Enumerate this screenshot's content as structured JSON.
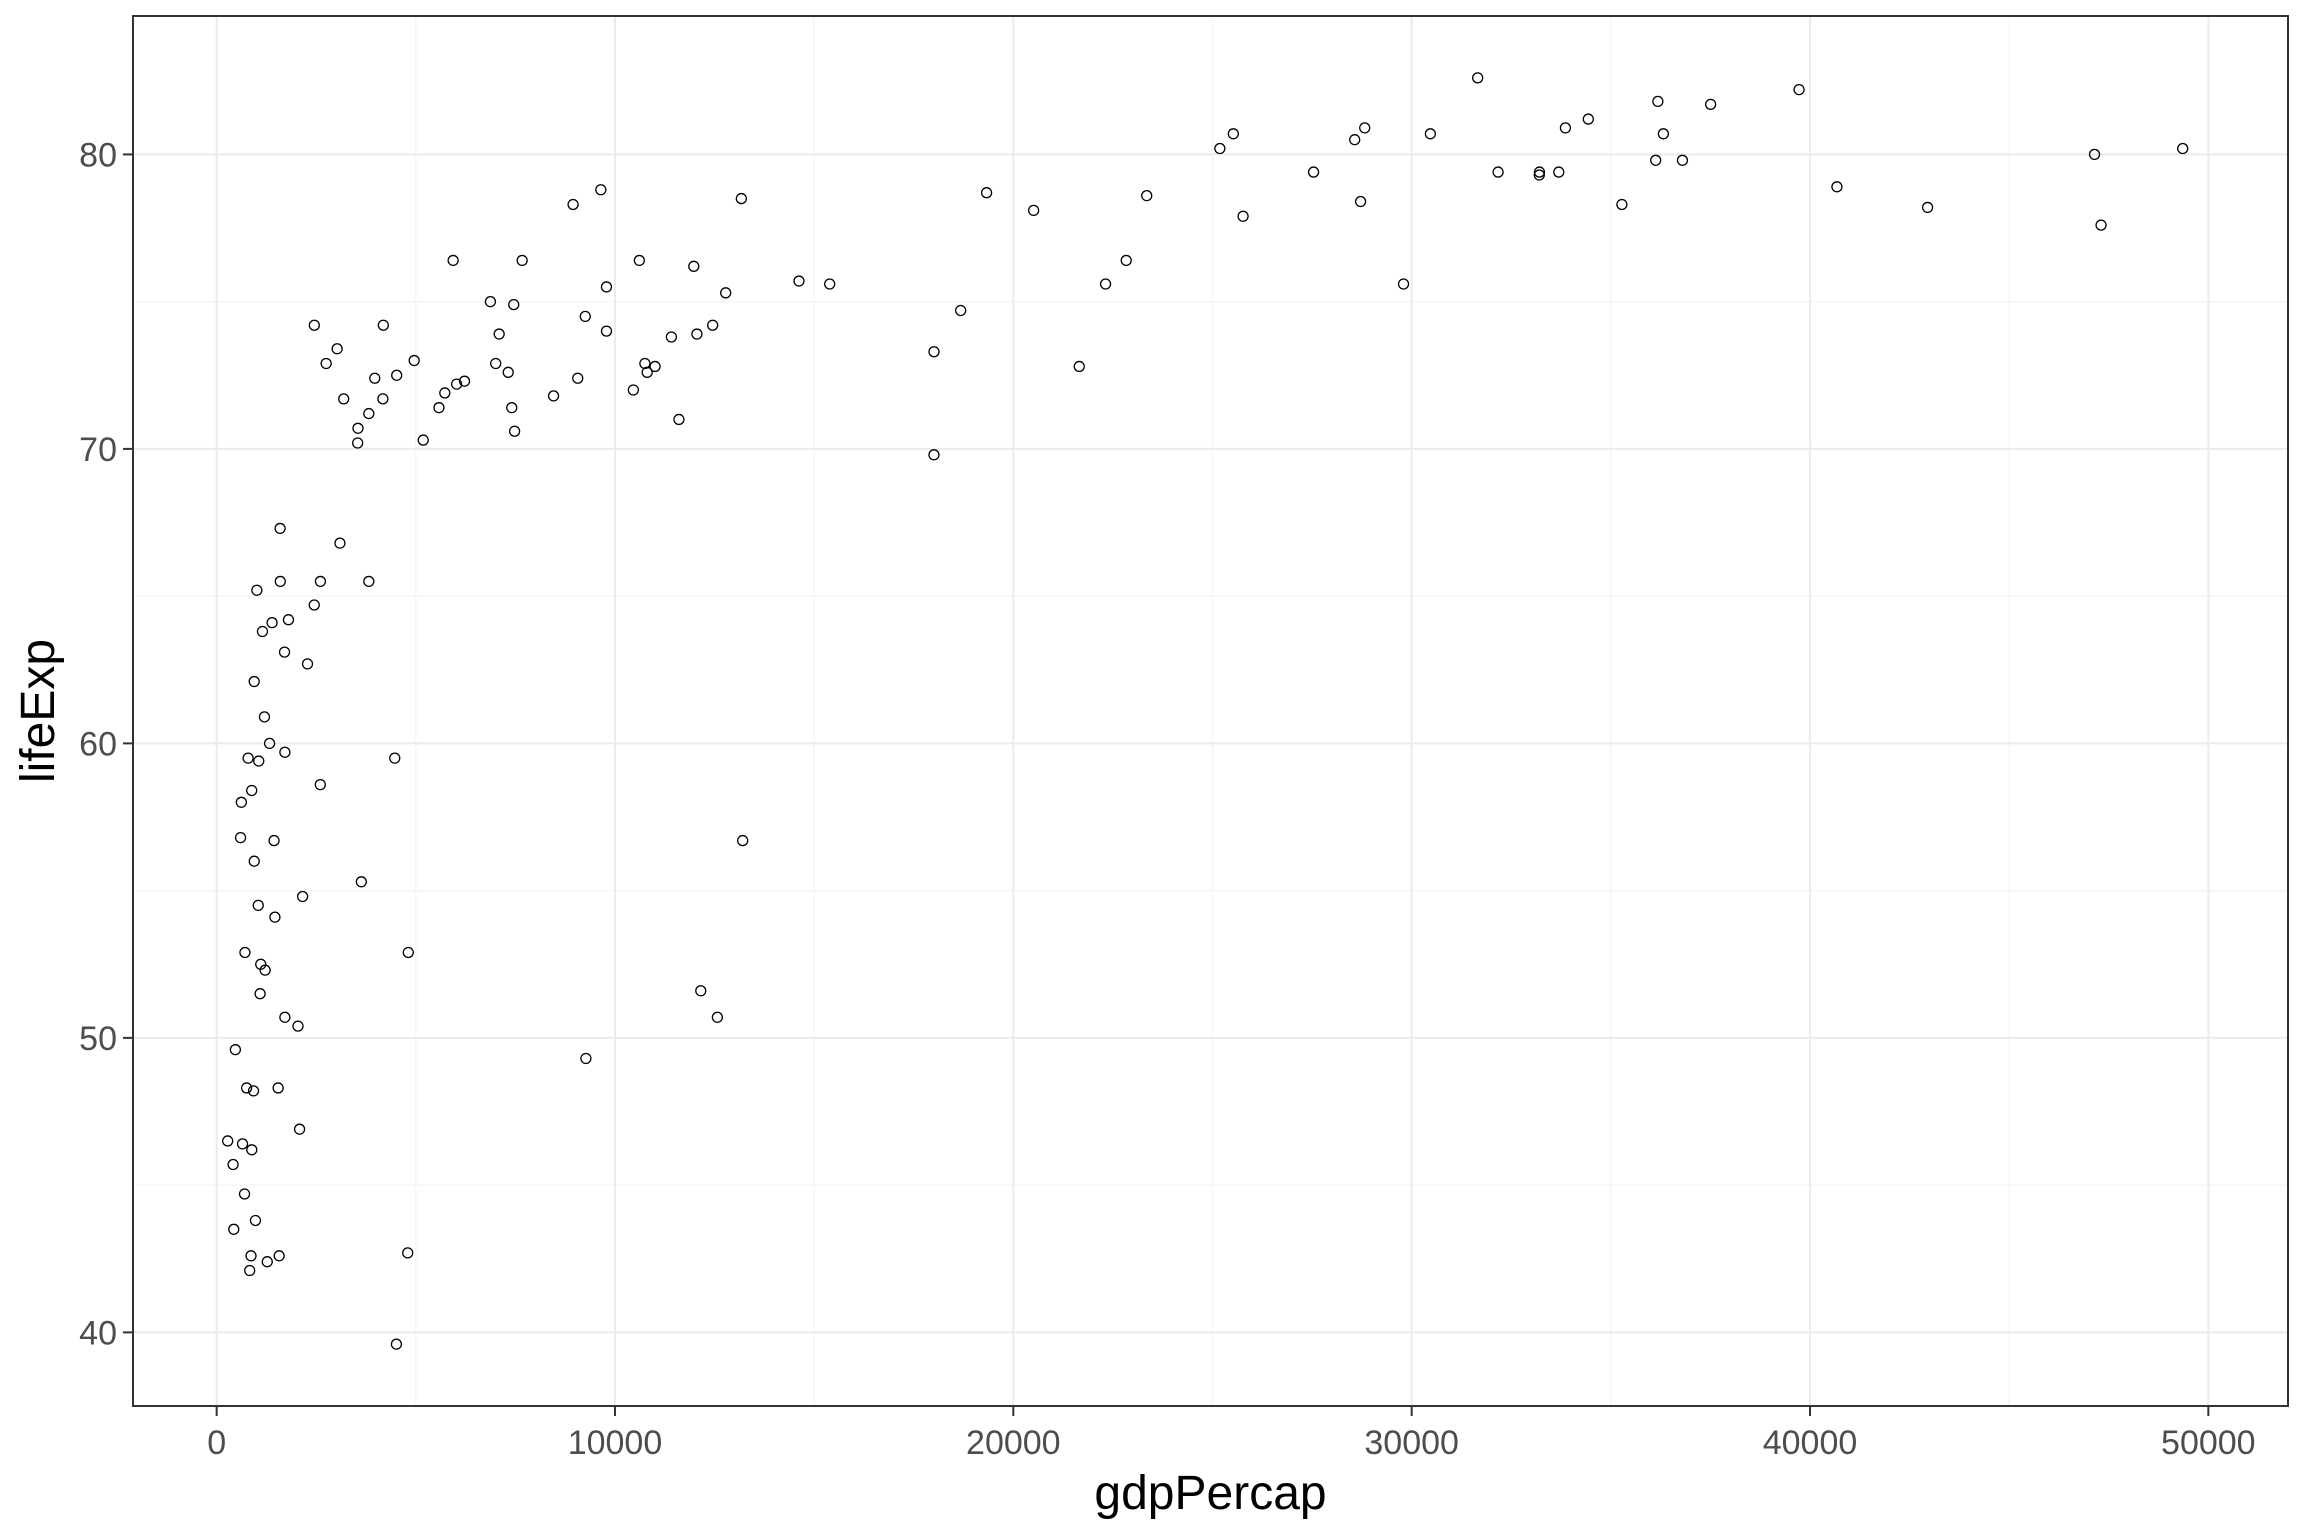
{
  "chart_data": {
    "type": "scatter",
    "title": "",
    "xlabel": "gdpPercap",
    "ylabel": "lifeExp",
    "xlim": [
      -2100,
      52000
    ],
    "ylim": [
      37.5,
      84.7
    ],
    "x_ticks": [
      0,
      10000,
      20000,
      30000,
      40000,
      50000
    ],
    "x_tick_labels": [
      "0",
      "10000",
      "20000",
      "30000",
      "40000",
      "50000"
    ],
    "y_ticks": [
      40,
      50,
      60,
      70,
      80
    ],
    "y_tick_labels": [
      "40",
      "50",
      "60",
      "70",
      "80"
    ],
    "x_minor_ticks": [
      5000,
      15000,
      25000,
      35000,
      45000
    ],
    "y_minor_ticks": [
      45,
      55,
      65,
      75
    ],
    "grid": true,
    "legend": "none",
    "colors": {
      "background": "#ffffff",
      "grid_major": "#ebebeb",
      "grid_minor": "#f5f5f5",
      "panel_border": "#333333",
      "point_stroke": "#000000",
      "tick_label": "#4d4d4d",
      "axis_title": "#000000"
    },
    "points": [
      {
        "x": 277,
        "y": 46.5
      },
      {
        "x": 413,
        "y": 45.7
      },
      {
        "x": 430,
        "y": 43.5
      },
      {
        "x": 470,
        "y": 49.6
      },
      {
        "x": 620,
        "y": 58.0
      },
      {
        "x": 600,
        "y": 56.8
      },
      {
        "x": 650,
        "y": 46.4
      },
      {
        "x": 700,
        "y": 44.7
      },
      {
        "x": 710,
        "y": 52.9
      },
      {
        "x": 752,
        "y": 48.3
      },
      {
        "x": 790,
        "y": 59.5
      },
      {
        "x": 830,
        "y": 42.1
      },
      {
        "x": 863,
        "y": 42.6
      },
      {
        "x": 883,
        "y": 46.2
      },
      {
        "x": 880,
        "y": 58.4
      },
      {
        "x": 943,
        "y": 62.1
      },
      {
        "x": 926,
        "y": 48.2
      },
      {
        "x": 944,
        "y": 56.0
      },
      {
        "x": 974,
        "y": 43.8
      },
      {
        "x": 1010,
        "y": 65.2
      },
      {
        "x": 1044,
        "y": 54.5
      },
      {
        "x": 1057,
        "y": 59.4
      },
      {
        "x": 1091,
        "y": 51.5
      },
      {
        "x": 1107,
        "y": 52.5
      },
      {
        "x": 1150,
        "y": 63.8
      },
      {
        "x": 1200,
        "y": 60.9
      },
      {
        "x": 1217,
        "y": 52.3
      },
      {
        "x": 1270,
        "y": 42.4
      },
      {
        "x": 1328,
        "y": 60.0
      },
      {
        "x": 1391,
        "y": 64.1
      },
      {
        "x": 1441,
        "y": 56.7
      },
      {
        "x": 1463,
        "y": 54.1
      },
      {
        "x": 1544,
        "y": 48.3
      },
      {
        "x": 1569,
        "y": 42.6
      },
      {
        "x": 1593,
        "y": 67.3
      },
      {
        "x": 1598,
        "y": 65.5
      },
      {
        "x": 1704,
        "y": 63.1
      },
      {
        "x": 1713,
        "y": 59.7
      },
      {
        "x": 1713,
        "y": 50.7
      },
      {
        "x": 1803,
        "y": 64.2
      },
      {
        "x": 2042,
        "y": 50.4
      },
      {
        "x": 2082,
        "y": 46.9
      },
      {
        "x": 2158,
        "y": 54.8
      },
      {
        "x": 2281,
        "y": 62.7
      },
      {
        "x": 2450,
        "y": 64.7
      },
      {
        "x": 2452,
        "y": 74.2
      },
      {
        "x": 2602,
        "y": 58.6
      },
      {
        "x": 2605,
        "y": 65.5
      },
      {
        "x": 2749,
        "y": 72.9
      },
      {
        "x": 3025,
        "y": 73.4
      },
      {
        "x": 3095,
        "y": 66.8
      },
      {
        "x": 3190,
        "y": 71.7
      },
      {
        "x": 3548,
        "y": 70.7
      },
      {
        "x": 3540,
        "y": 70.2
      },
      {
        "x": 3632,
        "y": 55.3
      },
      {
        "x": 3820,
        "y": 71.2
      },
      {
        "x": 3820,
        "y": 65.5
      },
      {
        "x": 3970,
        "y": 72.4
      },
      {
        "x": 4173,
        "y": 71.7
      },
      {
        "x": 4185,
        "y": 74.2
      },
      {
        "x": 4513,
        "y": 39.6
      },
      {
        "x": 4471,
        "y": 59.5
      },
      {
        "x": 4520,
        "y": 72.5
      },
      {
        "x": 4797,
        "y": 42.7
      },
      {
        "x": 4811,
        "y": 52.9
      },
      {
        "x": 4959,
        "y": 73.0
      },
      {
        "x": 5186,
        "y": 70.3
      },
      {
        "x": 5581,
        "y": 71.4
      },
      {
        "x": 5728,
        "y": 71.9
      },
      {
        "x": 5937,
        "y": 76.4
      },
      {
        "x": 6025,
        "y": 72.2
      },
      {
        "x": 6223,
        "y": 72.3
      },
      {
        "x": 6873,
        "y": 75.0
      },
      {
        "x": 7006,
        "y": 72.9
      },
      {
        "x": 7092,
        "y": 73.9
      },
      {
        "x": 7320,
        "y": 72.6
      },
      {
        "x": 7408,
        "y": 71.4
      },
      {
        "x": 7458,
        "y": 74.9
      },
      {
        "x": 7480,
        "y": 70.6
      },
      {
        "x": 7670,
        "y": 76.4
      },
      {
        "x": 8458,
        "y": 71.8
      },
      {
        "x": 8948,
        "y": 78.3
      },
      {
        "x": 9065,
        "y": 72.4
      },
      {
        "x": 9254,
        "y": 74.5
      },
      {
        "x": 9270,
        "y": 49.3
      },
      {
        "x": 9645,
        "y": 78.8
      },
      {
        "x": 9787,
        "y": 74.0
      },
      {
        "x": 9786,
        "y": 75.5
      },
      {
        "x": 10461,
        "y": 72.0
      },
      {
        "x": 10611,
        "y": 76.4
      },
      {
        "x": 10751,
        "y": 72.9
      },
      {
        "x": 10808,
        "y": 72.6
      },
      {
        "x": 11006,
        "y": 72.8
      },
      {
        "x": 11416,
        "y": 73.8
      },
      {
        "x": 11605,
        "y": 71.0
      },
      {
        "x": 11978,
        "y": 76.2
      },
      {
        "x": 12057,
        "y": 73.9
      },
      {
        "x": 12154,
        "y": 51.6
      },
      {
        "x": 12452,
        "y": 74.2
      },
      {
        "x": 12570,
        "y": 50.7
      },
      {
        "x": 12779,
        "y": 75.3
      },
      {
        "x": 13172,
        "y": 78.5
      },
      {
        "x": 13206,
        "y": 56.7
      },
      {
        "x": 14619,
        "y": 75.7
      },
      {
        "x": 15390,
        "y": 75.6
      },
      {
        "x": 18009,
        "y": 73.3
      },
      {
        "x": 18008,
        "y": 69.8
      },
      {
        "x": 18678,
        "y": 74.7
      },
      {
        "x": 19329,
        "y": 78.7
      },
      {
        "x": 20510,
        "y": 78.1
      },
      {
        "x": 21655,
        "y": 72.8
      },
      {
        "x": 22316,
        "y": 75.6
      },
      {
        "x": 22834,
        "y": 76.4
      },
      {
        "x": 23349,
        "y": 78.6
      },
      {
        "x": 25185,
        "y": 80.2
      },
      {
        "x": 25523,
        "y": 80.7
      },
      {
        "x": 25768,
        "y": 77.9
      },
      {
        "x": 27538,
        "y": 79.4
      },
      {
        "x": 28570,
        "y": 80.5
      },
      {
        "x": 28718,
        "y": 78.4
      },
      {
        "x": 28822,
        "y": 80.9
      },
      {
        "x": 29796,
        "y": 75.6
      },
      {
        "x": 30470,
        "y": 80.7
      },
      {
        "x": 31657,
        "y": 82.6
      },
      {
        "x": 32170,
        "y": 79.4
      },
      {
        "x": 33204,
        "y": 79.3
      },
      {
        "x": 33208,
        "y": 79.4
      },
      {
        "x": 33693,
        "y": 79.4
      },
      {
        "x": 33860,
        "y": 80.9
      },
      {
        "x": 34435,
        "y": 81.2
      },
      {
        "x": 35278,
        "y": 78.3
      },
      {
        "x": 36126,
        "y": 79.8
      },
      {
        "x": 36181,
        "y": 81.8
      },
      {
        "x": 36319,
        "y": 80.7
      },
      {
        "x": 36798,
        "y": 79.8
      },
      {
        "x": 37506,
        "y": 81.7
      },
      {
        "x": 39725,
        "y": 82.2
      },
      {
        "x": 40676,
        "y": 78.9
      },
      {
        "x": 42952,
        "y": 78.2
      },
      {
        "x": 47143,
        "y": 80.0
      },
      {
        "x": 47307,
        "y": 77.6
      },
      {
        "x": 49357,
        "y": 80.2
      }
    ]
  }
}
